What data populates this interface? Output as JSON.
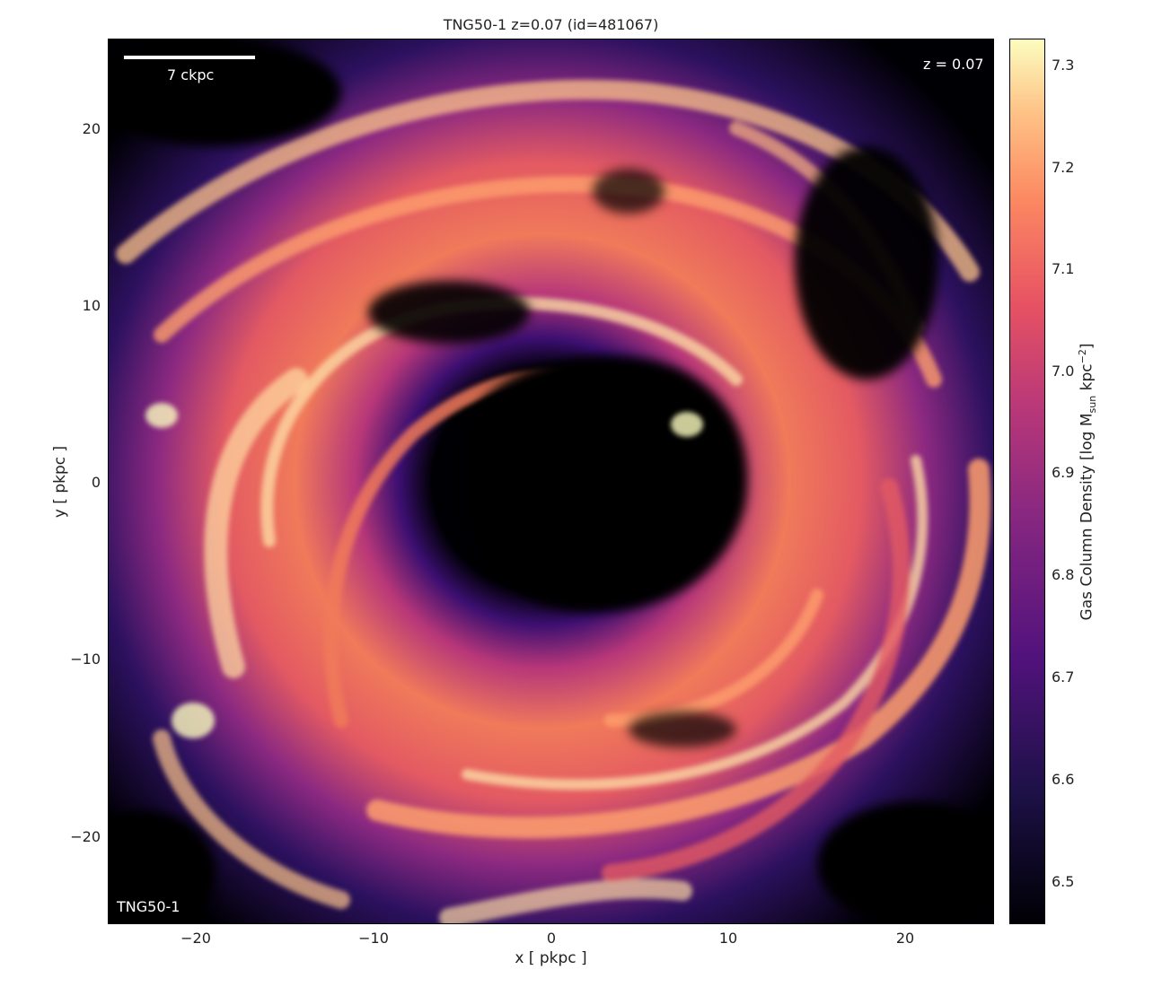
{
  "figure": {
    "title": "TNG50-1 z=0.07 (id=481067)",
    "xlabel": "x [ pkpc ]",
    "ylabel": "y [ pkpc ]",
    "scalebar_label": "7 ckpc",
    "redshift_label": "z = 0.07",
    "sim_label": "TNG50-1",
    "x_ticks": [
      "−20",
      "−10",
      "0",
      "10",
      "20"
    ],
    "y_ticks": [
      "20",
      "10",
      "0",
      "−10",
      "−20"
    ],
    "colorbar": {
      "label_main": "Gas Column Density [log M",
      "label_sub": "sun",
      "label_mid": " kpc",
      "label_sup": "−2",
      "label_end": "]",
      "ticks": [
        "7.3",
        "7.2",
        "7.1",
        "7.0",
        "6.9",
        "6.8",
        "6.7",
        "6.6",
        "6.5"
      ],
      "range": [
        6.46,
        7.33
      ]
    },
    "axis_range": {
      "x": [
        -25,
        25
      ],
      "y": [
        -25,
        25
      ]
    },
    "colormap": [
      "#000004",
      "#3b0f70",
      "#8c2981",
      "#de4968",
      "#fe9f6d",
      "#fcfdbf"
    ]
  }
}
